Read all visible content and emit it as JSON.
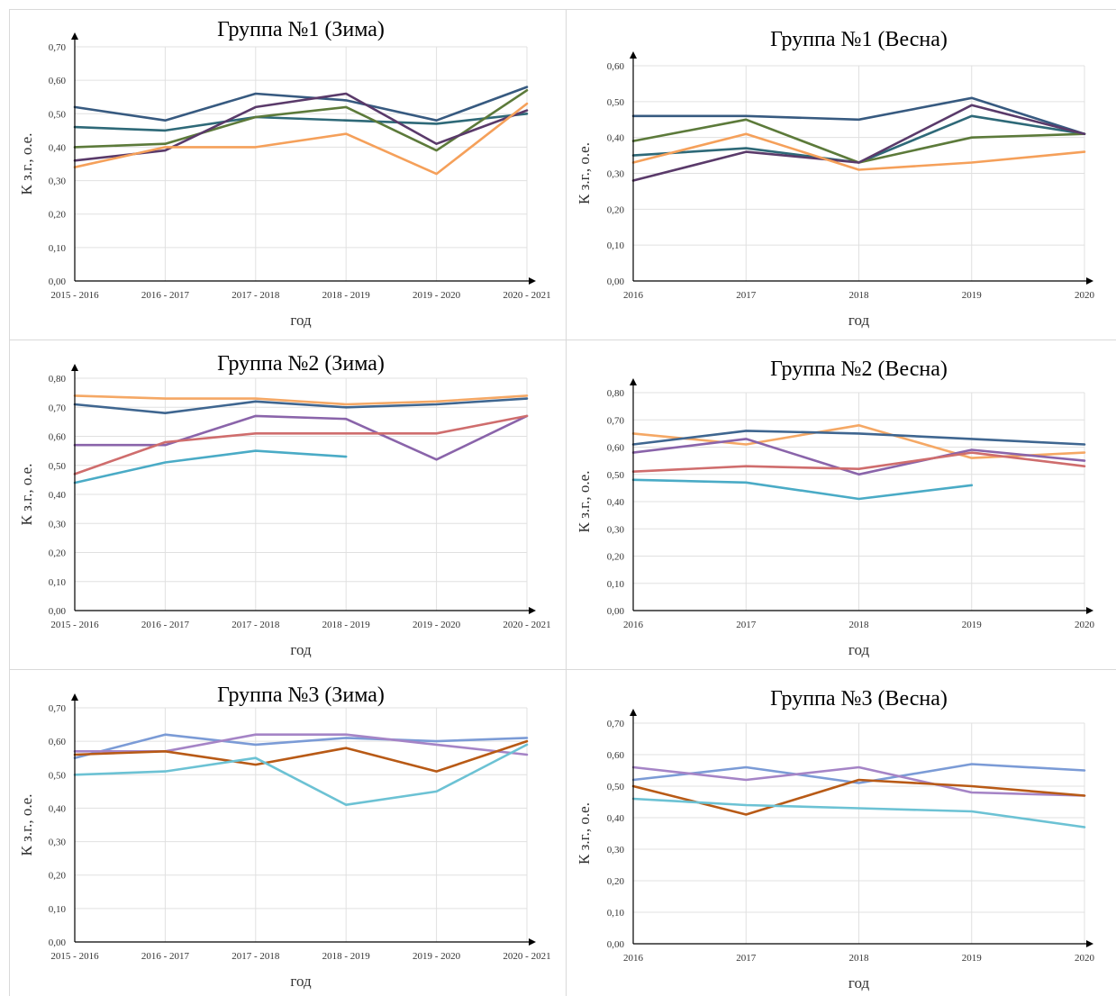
{
  "chart_data": [
    {
      "type": "line",
      "title": "Группа №1 (Зима)",
      "xlabel": "год",
      "ylabel": "К з.г., о.е.",
      "ylim": [
        0,
        0.7
      ],
      "yticks": [
        "0,00",
        "0,10",
        "0,20",
        "0,30",
        "0,40",
        "0,50",
        "0,60",
        "0,70"
      ],
      "categories": [
        "2015 - 2016",
        "2016 - 2017",
        "2017 - 2018",
        "2018 - 2019",
        "2019 - 2020",
        "2020 - 2021"
      ],
      "grid": true,
      "legend": "none",
      "series": [
        {
          "color": "#375a80",
          "values": [
            0.52,
            0.48,
            0.56,
            0.54,
            0.48,
            0.58
          ]
        },
        {
          "color": "#2e6978",
          "values": [
            0.46,
            0.45,
            0.49,
            0.48,
            0.47,
            0.5
          ]
        },
        {
          "color": "#5c7a3a",
          "values": [
            0.4,
            0.41,
            0.49,
            0.52,
            0.39,
            0.57
          ]
        },
        {
          "color": "#5a3a6a",
          "values": [
            0.36,
            0.39,
            0.52,
            0.56,
            0.41,
            0.51
          ]
        },
        {
          "color": "#f5a05a",
          "values": [
            0.34,
            0.4,
            0.4,
            0.44,
            0.32,
            0.53
          ]
        }
      ]
    },
    {
      "type": "line",
      "title": "Группа №1 (Весна)",
      "xlabel": "год",
      "ylabel": "К з.г., о.е.",
      "ylim": [
        0,
        0.6
      ],
      "yticks": [
        "0,00",
        "0,10",
        "0,20",
        "0,30",
        "0,40",
        "0,50",
        "0,60"
      ],
      "categories": [
        "2016",
        "2017",
        "2018",
        "2019",
        "2020"
      ],
      "grid": true,
      "legend": "none",
      "series": [
        {
          "color": "#375a80",
          "values": [
            0.46,
            0.46,
            0.45,
            0.51,
            0.41
          ]
        },
        {
          "color": "#2e6978",
          "values": [
            0.35,
            0.37,
            0.33,
            0.46,
            0.41
          ]
        },
        {
          "color": "#5c7a3a",
          "values": [
            0.39,
            0.45,
            0.33,
            0.4,
            0.41
          ]
        },
        {
          "color": "#5a3a6a",
          "values": [
            0.28,
            0.36,
            0.33,
            0.49,
            0.41
          ]
        },
        {
          "color": "#f5a05a",
          "values": [
            0.33,
            0.41,
            0.31,
            0.33,
            0.36
          ]
        }
      ]
    },
    {
      "type": "line",
      "title": "Группа №2 (Зима)",
      "xlabel": "год",
      "ylabel": "К з.г., о.е.",
      "ylim": [
        0,
        0.8
      ],
      "yticks": [
        "0,00",
        "0,10",
        "0,20",
        "0,30",
        "0,40",
        "0,50",
        "0,60",
        "0,70",
        "0,80"
      ],
      "categories": [
        "2015 - 2016",
        "2016 - 2017",
        "2017 - 2018",
        "2018 - 2019",
        "2019 - 2020",
        "2020 - 2021"
      ],
      "grid": true,
      "legend": "none",
      "series": [
        {
          "color": "#f5a865",
          "values": [
            0.74,
            0.73,
            0.73,
            0.71,
            0.72,
            0.74
          ]
        },
        {
          "color": "#3f6690",
          "values": [
            0.71,
            0.68,
            0.72,
            0.7,
            0.71,
            0.73
          ]
        },
        {
          "color": "#8a64aa",
          "values": [
            0.57,
            0.57,
            0.67,
            0.66,
            0.52,
            0.67
          ]
        },
        {
          "color": "#cf6d6d",
          "values": [
            0.47,
            0.58,
            0.61,
            0.61,
            0.61,
            0.67
          ]
        },
        {
          "color": "#4aabc6",
          "values": [
            0.44,
            0.51,
            0.55,
            0.53,
            null,
            null
          ]
        }
      ]
    },
    {
      "type": "line",
      "title": "Группа №2 (Весна)",
      "xlabel": "год",
      "ylabel": "К з.г., о.е.",
      "ylim": [
        0,
        0.8
      ],
      "yticks": [
        "0,00",
        "0,10",
        "0,20",
        "0,30",
        "0,40",
        "0,50",
        "0,60",
        "0,70",
        "0,80"
      ],
      "categories": [
        "2016",
        "2017",
        "2018",
        "2019",
        "2020"
      ],
      "grid": true,
      "legend": "none",
      "series": [
        {
          "color": "#f5a865",
          "values": [
            0.65,
            0.61,
            0.68,
            0.56,
            0.58
          ]
        },
        {
          "color": "#3f6690",
          "values": [
            0.61,
            0.66,
            0.65,
            0.63,
            0.61
          ]
        },
        {
          "color": "#8a64aa",
          "values": [
            0.58,
            0.63,
            0.5,
            0.59,
            0.55
          ]
        },
        {
          "color": "#cf6d6d",
          "values": [
            0.51,
            0.53,
            0.52,
            0.58,
            0.53
          ]
        },
        {
          "color": "#4aabc6",
          "values": [
            0.48,
            0.47,
            0.41,
            0.46,
            null
          ]
        }
      ]
    },
    {
      "type": "line",
      "title": "Группа №3 (Зима)",
      "xlabel": "год",
      "ylabel": "К з.г., о.е.",
      "ylim": [
        0,
        0.7
      ],
      "yticks": [
        "0,00",
        "0,10",
        "0,20",
        "0,30",
        "0,40",
        "0,50",
        "0,60",
        "0,70"
      ],
      "categories": [
        "2015 - 2016",
        "2016 - 2017",
        "2017 - 2018",
        "2018 - 2019",
        "2019 - 2020",
        "2020 - 2021"
      ],
      "grid": true,
      "legend": "none",
      "series": [
        {
          "color": "#7b9bd6",
          "values": [
            0.55,
            0.62,
            0.59,
            0.61,
            0.6,
            0.61
          ]
        },
        {
          "color": "#a584c6",
          "values": [
            0.57,
            0.57,
            0.62,
            0.62,
            0.59,
            0.56
          ]
        },
        {
          "color": "#b85a16",
          "values": [
            0.56,
            0.57,
            0.53,
            0.58,
            0.51,
            0.6
          ]
        },
        {
          "color": "#6cc2d4",
          "values": [
            0.5,
            0.51,
            0.55,
            0.41,
            0.45,
            0.59
          ]
        }
      ]
    },
    {
      "type": "line",
      "title": "Группа №3 (Весна)",
      "xlabel": "год",
      "ylabel": "К з.г., о.е.",
      "ylim": [
        0,
        0.7
      ],
      "yticks": [
        "0,00",
        "0,10",
        "0,20",
        "0,30",
        "0,40",
        "0,50",
        "0,60",
        "0,70"
      ],
      "categories": [
        "2016",
        "2017",
        "2018",
        "2019",
        "2020"
      ],
      "grid": true,
      "legend": "none",
      "series": [
        {
          "color": "#7b9bd6",
          "values": [
            0.52,
            0.56,
            0.51,
            0.57,
            0.55
          ]
        },
        {
          "color": "#a584c6",
          "values": [
            0.56,
            0.52,
            0.56,
            0.48,
            0.47
          ]
        },
        {
          "color": "#b85a16",
          "values": [
            0.5,
            0.41,
            0.52,
            0.5,
            0.47
          ]
        },
        {
          "color": "#6cc2d4",
          "values": [
            0.46,
            0.44,
            0.43,
            0.42,
            0.37
          ]
        }
      ]
    }
  ]
}
